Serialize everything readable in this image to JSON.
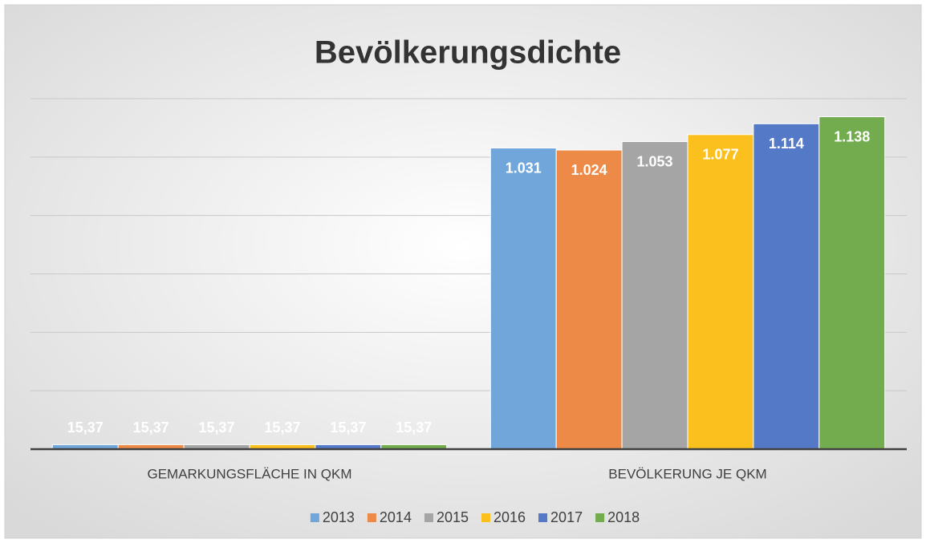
{
  "chart_data": {
    "type": "bar",
    "title": "Bevölkerungsdichte",
    "categories": [
      "GEMARKUNGSFLÄCHE IN QKM",
      "BEVÖLKERUNG JE QKM"
    ],
    "series": [
      {
        "name": "2013",
        "color": "#70a6da",
        "values": [
          15.37,
          1031
        ],
        "value_labels": [
          "15,37",
          "1.031"
        ]
      },
      {
        "name": "2014",
        "color": "#ed8a48",
        "values": [
          15.37,
          1024
        ],
        "value_labels": [
          "15,37",
          "1.024"
        ]
      },
      {
        "name": "2015",
        "color": "#a5a5a5",
        "values": [
          15.37,
          1053
        ],
        "value_labels": [
          "15,37",
          "1.053"
        ]
      },
      {
        "name": "2016",
        "color": "#fcc01e",
        "values": [
          15.37,
          1077
        ],
        "value_labels": [
          "15,37",
          "1.077"
        ]
      },
      {
        "name": "2017",
        "color": "#5479c6",
        "values": [
          15.37,
          1114
        ],
        "value_labels": [
          "15,37",
          "1.114"
        ]
      },
      {
        "name": "2018",
        "color": "#72ac4f",
        "values": [
          15.37,
          1138
        ],
        "value_labels": [
          "15,37",
          "1.138"
        ]
      }
    ],
    "ylim": [
      0,
      1200
    ],
    "yticks": [
      0,
      200,
      400,
      600,
      800,
      1000,
      1200
    ],
    "grid": true,
    "legend": "bottom"
  }
}
